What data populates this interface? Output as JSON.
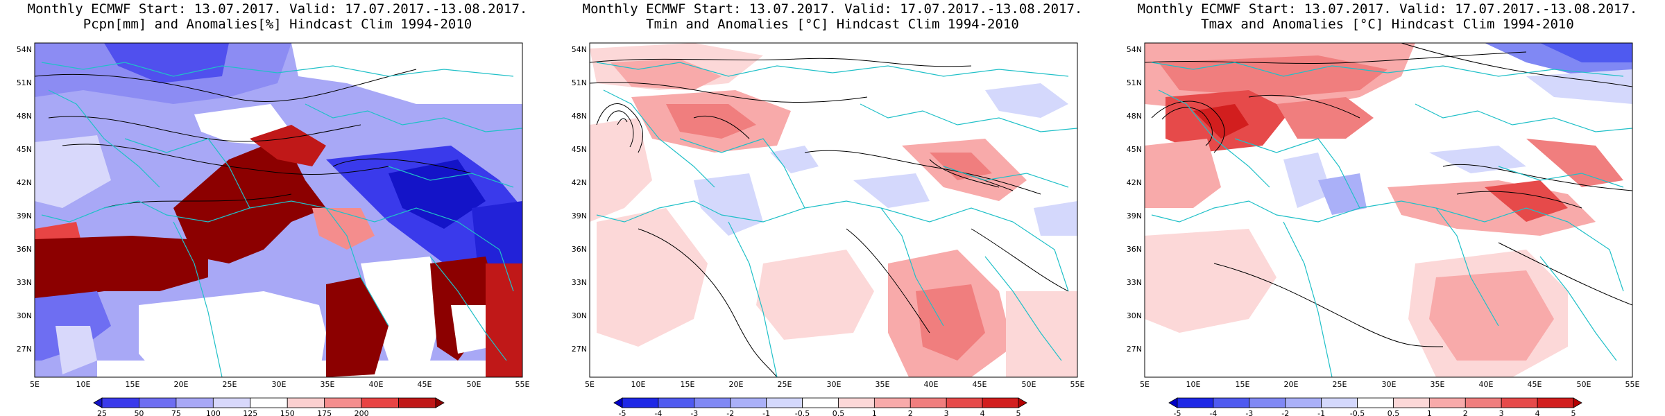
{
  "panels": [
    {
      "title1": "Monthly ECMWF Start: 13.07.2017. Valid: 17.07.2017.-13.08.2017.",
      "title2": "Pcpn[mm] and Anomalies[%] Hindcast Clim 1994-2010",
      "colorbar": {
        "labels": [
          "25",
          "50",
          "75",
          "100",
          "125",
          "150",
          "175",
          "200"
        ],
        "colors": [
          "#1414c8",
          "#3a3aeb",
          "#6e6ef2",
          "#a8a8f6",
          "#d8d8fb",
          "#ffffff",
          "#fbd0d0",
          "#f48d8d",
          "#e84444",
          "#c01818",
          "#8c0000"
        ]
      }
    },
    {
      "title1": "Monthly ECMWF Start: 13.07.2017. Valid: 17.07.2017.-13.08.2017.",
      "title2": "Tmin and Anomalies [°C] Hindcast Clim 1994-2010",
      "colorbar": {
        "labels": [
          "-5",
          "-4",
          "-3",
          "-2",
          "-1",
          "-0.5",
          "0.5",
          "1",
          "2",
          "3",
          "4",
          "5"
        ],
        "colors": [
          "#0000c8",
          "#1e28e6",
          "#4f5af0",
          "#8088f4",
          "#aab0f8",
          "#d4d8fc",
          "#ffffff",
          "#fcd8d8",
          "#f8aaaa",
          "#f07e7e",
          "#e64a4a",
          "#d21e1e",
          "#b40000"
        ]
      }
    },
    {
      "title1": "Monthly ECMWF Start: 13.07.2017. Valid: 17.07.2017.-13.08.2017.",
      "title2": "Tmax and Anomalies [°C] Hindcast Clim 1994-2010",
      "colorbar": {
        "labels": [
          "-5",
          "-4",
          "-3",
          "-2",
          "-1",
          "-0.5",
          "0.5",
          "1",
          "2",
          "3",
          "4",
          "5"
        ],
        "colors": [
          "#0000c8",
          "#1e28e6",
          "#4f5af0",
          "#8088f4",
          "#aab0f8",
          "#d4d8fc",
          "#ffffff",
          "#fcd8d8",
          "#f8aaaa",
          "#f07e7e",
          "#e64a4a",
          "#d21e1e",
          "#b40000"
        ]
      }
    }
  ],
  "axes": {
    "lat_labels": [
      "54N",
      "51N",
      "48N",
      "45N",
      "42N",
      "39N",
      "36N",
      "33N",
      "30N",
      "27N"
    ],
    "lon_labels": [
      "5E",
      "10E",
      "15E",
      "20E",
      "25E",
      "30E",
      "35E",
      "40E",
      "45E",
      "50E",
      "55E"
    ]
  }
}
